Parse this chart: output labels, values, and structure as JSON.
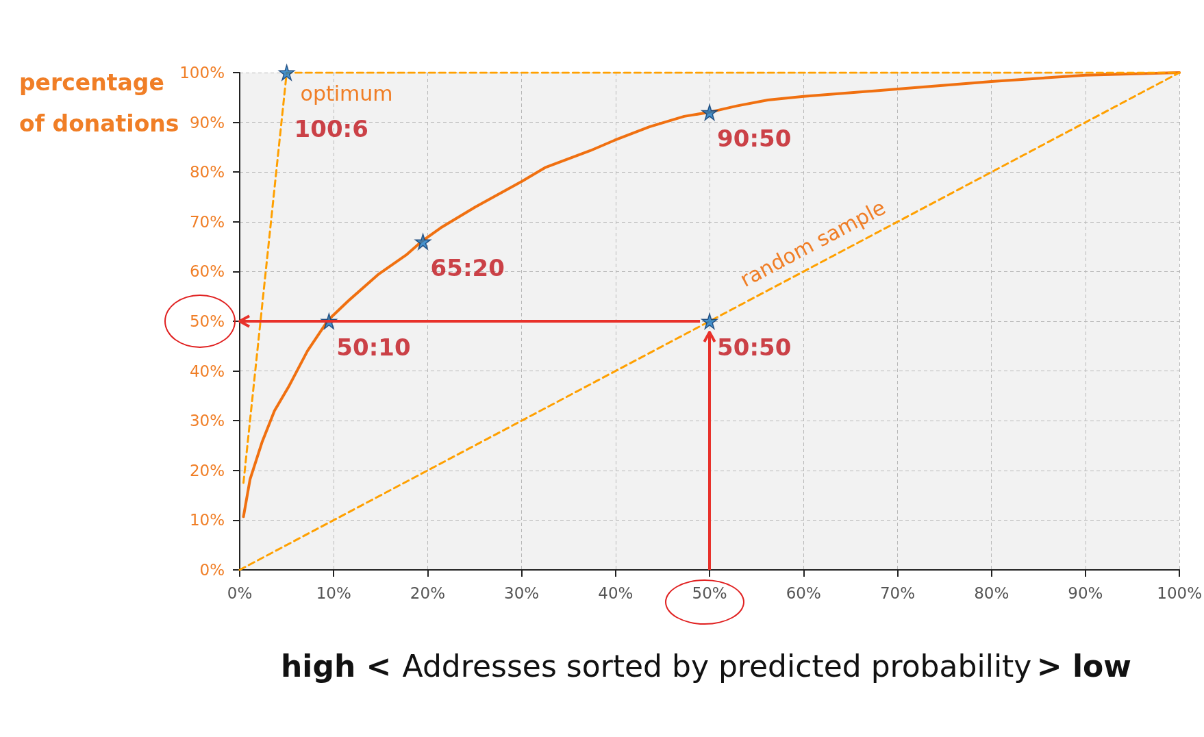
{
  "chart_data": {
    "type": "line",
    "xlabel": "Addresses sorted by predicted probability",
    "ylabel": "percentage of donations",
    "xlim": [
      0,
      100
    ],
    "ylim": [
      0,
      100
    ],
    "xticks": [
      {
        "value": 0,
        "label": "0%"
      },
      {
        "value": 10,
        "label": "10%"
      },
      {
        "value": 20,
        "label": "20%"
      },
      {
        "value": 30,
        "label": "30%"
      },
      {
        "value": 40,
        "label": "40%"
      },
      {
        "value": 50,
        "label": "50%"
      },
      {
        "value": 60,
        "label": "60%"
      },
      {
        "value": 70,
        "label": "70%"
      },
      {
        "value": 80,
        "label": "80%"
      },
      {
        "value": 90,
        "label": "90%"
      },
      {
        "value": 100,
        "label": "100%"
      }
    ],
    "yticks": [
      {
        "value": 0,
        "label": "0%"
      },
      {
        "value": 10,
        "label": "10%"
      },
      {
        "value": 20,
        "label": "20%"
      },
      {
        "value": 30,
        "label": "30%"
      },
      {
        "value": 40,
        "label": "40%"
      },
      {
        "value": 50,
        "label": "50%"
      },
      {
        "value": 60,
        "label": "60%"
      },
      {
        "value": 70,
        "label": "70%"
      },
      {
        "value": 80,
        "label": "80%"
      },
      {
        "value": 90,
        "label": "90%"
      },
      {
        "value": 100,
        "label": "100%"
      }
    ],
    "grid": true,
    "legend": false,
    "series": [
      {
        "color": "#f07010",
        "line_style": "solid",
        "marker": "none",
        "x": [
          0.4,
          1.1,
          2.4,
          3.7,
          5.2,
          7.2,
          9.4,
          11.5,
          14.8,
          17.7,
          19.4,
          21.4,
          25.1,
          30,
          32.5,
          37.3,
          39.9,
          43.6,
          47.3,
          49.9,
          52.9,
          56.2,
          60,
          70,
          80,
          90,
          100
        ],
        "values": [
          10.7,
          18.2,
          25.8,
          32,
          36.8,
          44,
          50.2,
          54,
          59.5,
          63.3,
          66.1,
          68.8,
          73,
          78.1,
          80.9,
          84.3,
          86.4,
          89.1,
          91.2,
          92,
          93.3,
          94.5,
          95.2,
          96.7,
          98.2,
          99.5,
          100
        ]
      },
      {
        "name": "optimum",
        "color": "#ffa000",
        "line_style": "dashed",
        "marker": "none",
        "x": [
          0.4,
          5,
          100
        ],
        "values": [
          17.5,
          100,
          100
        ]
      },
      {
        "name": "random sample",
        "color": "#ffa000",
        "line_style": "dashed",
        "marker": "none",
        "x": [
          0,
          100
        ],
        "values": [
          0,
          100
        ]
      },
      {
        "type": "scatter",
        "color": "#1a78c2",
        "marker": "star",
        "x": [
          5,
          9.5,
          19.5,
          50,
          50
        ],
        "values": [
          100,
          50,
          66,
          92,
          50
        ]
      }
    ],
    "annotations": [
      {
        "text": "100:6",
        "x": 5,
        "y": 100
      },
      {
        "text": "50:10",
        "x": 9.5,
        "y": 50
      },
      {
        "text": "65:20",
        "x": 19.5,
        "y": 66
      },
      {
        "text": "90:50",
        "x": 50,
        "y": 92
      },
      {
        "text": "50:50",
        "x": 50,
        "y": 50
      },
      "high <",
      "> low"
    ]
  }
}
